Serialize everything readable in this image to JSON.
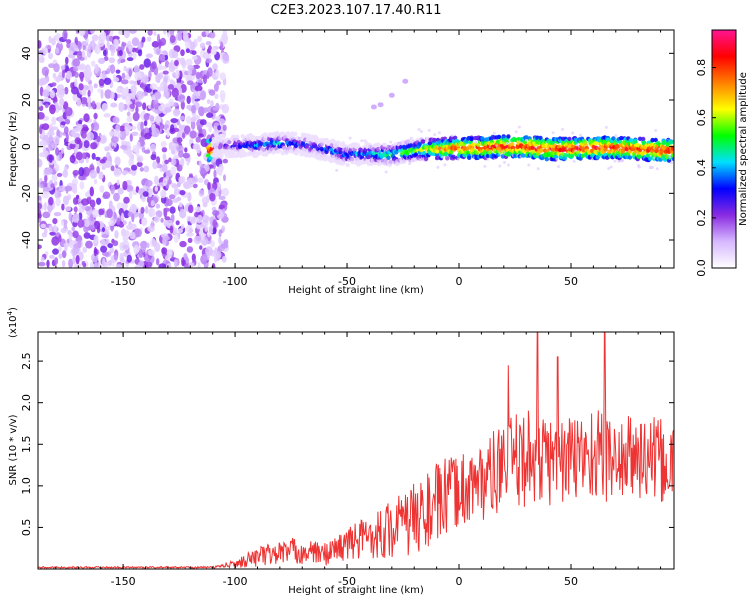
{
  "title": "C2E3.2023.107.17.40.R11",
  "chart_data": [
    {
      "type": "heatmap",
      "name": "spectrogram",
      "xlabel": "Height of straight line (km)",
      "ylabel": "Frequency (Hz)",
      "xlim": [
        -188,
        96
      ],
      "ylim": [
        -52,
        50
      ],
      "xticks": [
        "-150",
        "-100",
        "-50",
        "0",
        "50"
      ],
      "xtick_values": [
        -150,
        -100,
        -50,
        0,
        50
      ],
      "yticks": [
        "-40",
        "-20",
        "0",
        "20",
        "40"
      ],
      "ytick_values": [
        -40,
        -20,
        0,
        20,
        40
      ],
      "noise_region_x": [
        -188,
        -108
      ],
      "signal_band": [
        {
          "x": -110,
          "f": 0.0,
          "amp": 0.15
        },
        {
          "x": -100,
          "f": 0.5,
          "amp": 0.35
        },
        {
          "x": -90,
          "f": 0.5,
          "amp": 0.4
        },
        {
          "x": -80,
          "f": 1.5,
          "amp": 0.45
        },
        {
          "x": -70,
          "f": 1.0,
          "amp": 0.35
        },
        {
          "x": -60,
          "f": -1.0,
          "amp": 0.4
        },
        {
          "x": -50,
          "f": -3.5,
          "amp": 0.4
        },
        {
          "x": -40,
          "f": -3.0,
          "amp": 0.45
        },
        {
          "x": -30,
          "f": -3.5,
          "amp": 0.55
        },
        {
          "x": -20,
          "f": -1.5,
          "amp": 0.6
        },
        {
          "x": -10,
          "f": -1.0,
          "amp": 0.75
        },
        {
          "x": 0,
          "f": -0.5,
          "amp": 0.85
        },
        {
          "x": 10,
          "f": -0.5,
          "amp": 0.85
        },
        {
          "x": 20,
          "f": 0.0,
          "amp": 0.9
        },
        {
          "x": 30,
          "f": 0.0,
          "amp": 0.9
        },
        {
          "x": 40,
          "f": -1.0,
          "amp": 0.9
        },
        {
          "x": 50,
          "f": -1.0,
          "amp": 0.9
        },
        {
          "x": 60,
          "f": -0.5,
          "amp": 0.9
        },
        {
          "x": 70,
          "f": -0.5,
          "amp": 0.9
        },
        {
          "x": 80,
          "f": -1.0,
          "amp": 0.9
        },
        {
          "x": 90,
          "f": -1.5,
          "amp": 0.9
        }
      ],
      "side_feature": [
        {
          "x": -38,
          "f": 17
        },
        {
          "x": -35,
          "f": 18
        },
        {
          "x": -30,
          "f": 22
        },
        {
          "x": -24,
          "f": 28
        }
      ]
    },
    {
      "type": "colorbar",
      "label": "Normalized spectral amplitude",
      "range": [
        0,
        0.95
      ],
      "ticks": [
        "0.0",
        "0.2",
        "0.4",
        "0.6",
        "0.8"
      ],
      "tick_values": [
        0.0,
        0.2,
        0.4,
        0.6,
        0.8
      ],
      "colors": [
        "#ffffff",
        "#d6b8ff",
        "#8a2be2",
        "#0000ff",
        "#00e0ff",
        "#00ff00",
        "#ffff00",
        "#ff8000",
        "#ff0000",
        "#ff1493"
      ]
    },
    {
      "type": "line",
      "name": "snr",
      "xlabel": "Height of straight line (km)",
      "ylabel": "SNR (10 * v/v)",
      "scale_label": "(x10",
      "scale_exp": "4",
      "scale_close": ")",
      "xlim": [
        -188,
        96
      ],
      "ylim": [
        0,
        2.85
      ],
      "xticks": [
        "-150",
        "-100",
        "-50",
        "0",
        "50"
      ],
      "xtick_values": [
        -150,
        -100,
        -50,
        0,
        50
      ],
      "yticks": [
        "0.5",
        "1.0",
        "1.5",
        "2.0",
        "2.5"
      ],
      "ytick_values": [
        0.5,
        1.0,
        1.5,
        2.0,
        2.5
      ],
      "color": "#ee3333",
      "envelope": [
        {
          "x": -188,
          "base": 0.02,
          "amp": 0.01
        },
        {
          "x": -110,
          "base": 0.02,
          "amp": 0.01
        },
        {
          "x": -100,
          "base": 0.06,
          "amp": 0.05
        },
        {
          "x": -90,
          "base": 0.15,
          "amp": 0.12
        },
        {
          "x": -75,
          "base": 0.22,
          "amp": 0.16
        },
        {
          "x": -60,
          "base": 0.18,
          "amp": 0.14
        },
        {
          "x": -50,
          "base": 0.3,
          "amp": 0.2
        },
        {
          "x": -40,
          "base": 0.4,
          "amp": 0.28
        },
        {
          "x": -30,
          "base": 0.48,
          "amp": 0.36
        },
        {
          "x": -20,
          "base": 0.6,
          "amp": 0.45
        },
        {
          "x": -10,
          "base": 0.78,
          "amp": 0.5
        },
        {
          "x": 0,
          "base": 0.95,
          "amp": 0.45
        },
        {
          "x": 10,
          "base": 1.05,
          "amp": 0.48
        },
        {
          "x": 20,
          "base": 1.22,
          "amp": 0.55
        },
        {
          "x": 30,
          "base": 1.35,
          "amp": 0.6
        },
        {
          "x": 40,
          "base": 1.3,
          "amp": 0.55
        },
        {
          "x": 50,
          "base": 1.32,
          "amp": 0.55
        },
        {
          "x": 60,
          "base": 1.4,
          "amp": 0.6
        },
        {
          "x": 70,
          "base": 1.3,
          "amp": 0.5
        },
        {
          "x": 80,
          "base": 1.35,
          "amp": 0.55
        },
        {
          "x": 96,
          "base": 1.25,
          "amp": 0.5
        }
      ],
      "peaks": [
        {
          "x": 35,
          "y": 2.85
        },
        {
          "x": 65,
          "y": 2.85
        },
        {
          "x": 22,
          "y": 2.45
        },
        {
          "x": 44,
          "y": 2.55
        }
      ]
    }
  ]
}
